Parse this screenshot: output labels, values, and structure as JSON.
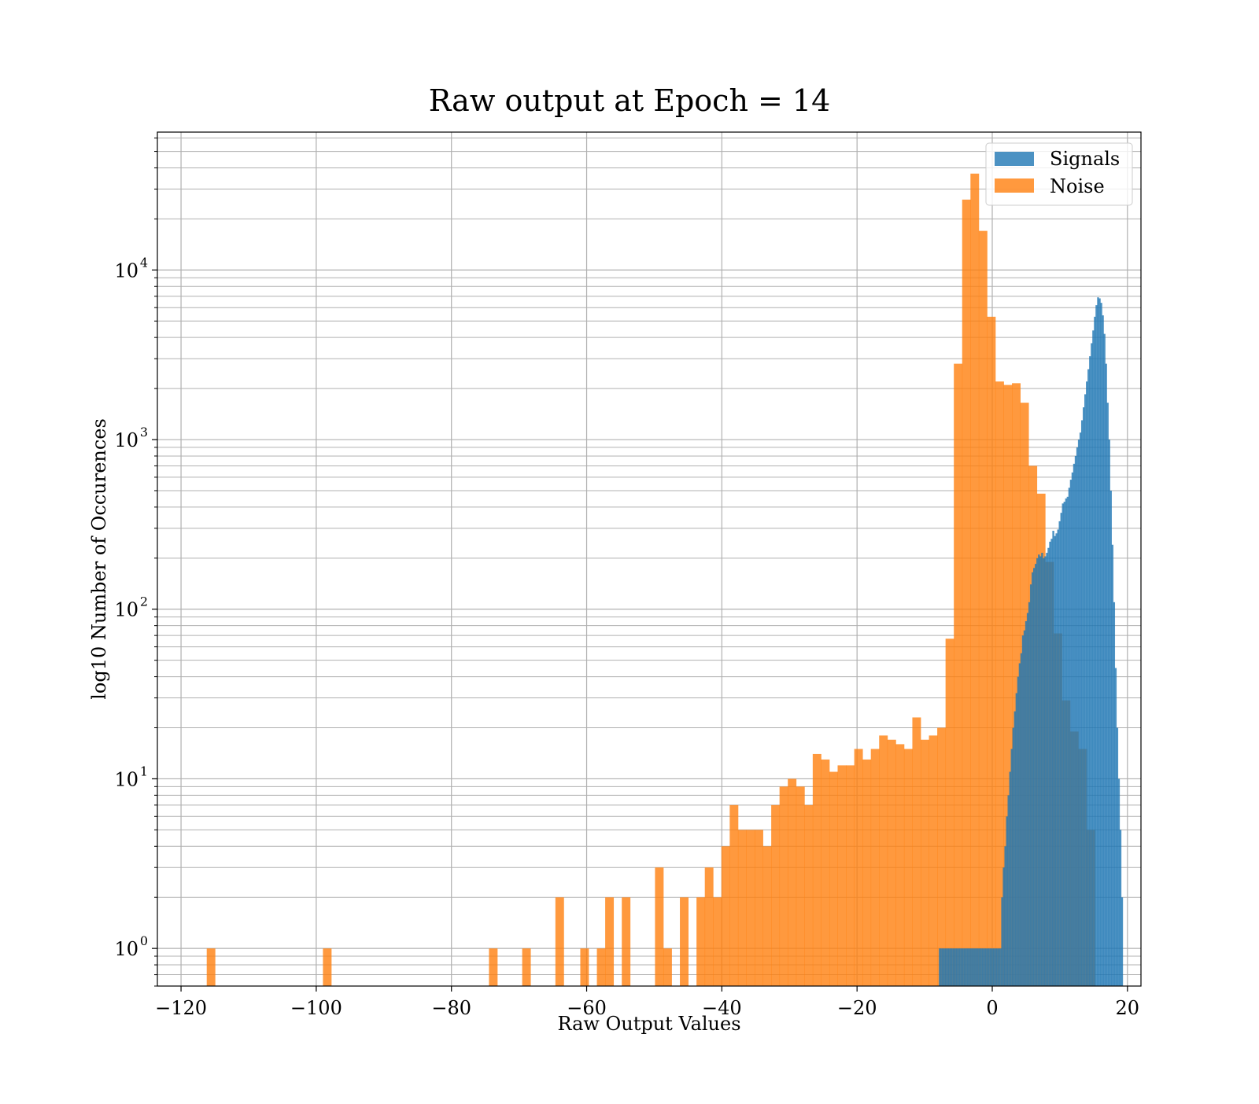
{
  "chart_data": {
    "type": "histogram",
    "title": "Raw output at Epoch = 14",
    "xlabel": "Raw Output Values",
    "ylabel": "log10 Number of Occurences",
    "xlim": [
      -123.5,
      22.0
    ],
    "ylim": [
      0.6,
      65000
    ],
    "yscale": "log",
    "grid": "major and minor",
    "legend": "top-right",
    "xticks": [
      -120,
      -100,
      -80,
      -60,
      -40,
      -20,
      0,
      20
    ],
    "xtick_labels": [
      "−120",
      "−100",
      "−80",
      "−60",
      "−40",
      "−20",
      "0",
      "20"
    ],
    "yticks": [
      {
        "value": 1,
        "base": "10",
        "exp": "0"
      },
      {
        "value": 10,
        "base": "10",
        "exp": "1"
      },
      {
        "value": 100,
        "base": "10",
        "exp": "2"
      },
      {
        "value": 1000,
        "base": "10",
        "exp": "3"
      },
      {
        "value": 10000,
        "base": "10",
        "exp": "4"
      }
    ],
    "series": [
      {
        "name": "Noise",
        "color": "#ff7f0e",
        "bin_start": -116.2,
        "bin_width": 1.228,
        "counts": [
          1,
          0,
          0,
          0,
          0,
          0,
          0,
          0,
          0,
          0,
          0,
          0,
          0,
          0,
          1,
          0,
          0,
          0,
          0,
          0,
          0,
          0,
          0,
          0,
          0,
          0,
          0,
          0,
          0,
          0,
          0,
          0,
          0,
          0,
          1,
          0,
          0,
          0,
          1,
          0,
          0,
          0,
          2,
          0,
          0,
          1,
          0,
          1,
          2,
          0,
          2,
          0,
          0,
          0,
          3,
          1,
          0,
          2,
          0,
          2,
          3,
          2,
          4,
          7,
          5,
          5,
          5,
          4,
          7,
          9,
          10,
          9,
          7,
          14,
          13,
          11,
          12,
          12,
          15,
          13,
          15,
          18,
          17,
          16,
          15,
          23,
          17,
          18,
          20,
          67,
          2800,
          26000,
          37000,
          17000,
          5300,
          2200,
          2100,
          2150,
          1650,
          700,
          480,
          190,
          72,
          29,
          19,
          15,
          5
        ]
      },
      {
        "name": "Signals",
        "color": "#1f77b4",
        "bin_start": -7.9,
        "bin_width": 0.2365,
        "counts": [
          1,
          1,
          1,
          1,
          1,
          1,
          1,
          1,
          1,
          1,
          1,
          1,
          1,
          1,
          1,
          1,
          1,
          1,
          1,
          1,
          1,
          1,
          1,
          1,
          1,
          1,
          1,
          1,
          1,
          1,
          1,
          1,
          1,
          1,
          1,
          1,
          1,
          1,
          1,
          2,
          3,
          4,
          6,
          8,
          11,
          15,
          20,
          25,
          32,
          40,
          48,
          55,
          70,
          75,
          85,
          95,
          110,
          140,
          165,
          175,
          185,
          200,
          210,
          205,
          215,
          200,
          205,
          215,
          230,
          250,
          260,
          290,
          270,
          280,
          295,
          330,
          370,
          420,
          430,
          450,
          460,
          520,
          580,
          640,
          720,
          800,
          900,
          1000,
          1100,
          1300,
          1550,
          1850,
          2200,
          2600,
          3100,
          3700,
          4400,
          5300,
          6200,
          6900,
          6800,
          6400,
          5400,
          4200,
          2800,
          1650,
          1000,
          500,
          240,
          110,
          45,
          20,
          10,
          5,
          2
        ]
      }
    ]
  },
  "legend": {
    "entries": [
      {
        "label": "Signals",
        "color": "#1f77b4"
      },
      {
        "label": "Noise",
        "color": "#ff7f0e"
      }
    ]
  }
}
